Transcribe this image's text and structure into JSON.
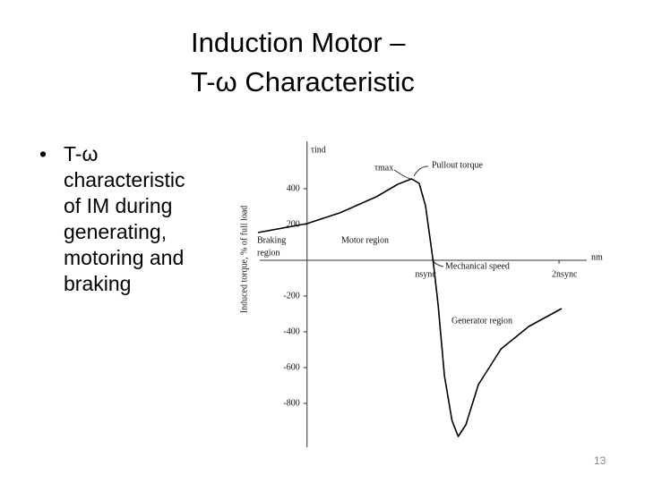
{
  "slide": {
    "title": [
      "Induction Motor –",
      "T-ω Characteristic"
    ],
    "bullet": [
      "T-ω",
      "characteristic",
      "of IM during",
      "generating,",
      "motoring and",
      "braking"
    ],
    "page_number": "13"
  },
  "chart_data": {
    "type": "line",
    "ylabel": "Induced torque, % of full load",
    "y_axis_symbol": "τind",
    "xlabel": "nm",
    "x": [
      -0.39,
      0,
      0.26,
      0.55,
      0.72,
      0.83,
      0.89,
      0.94,
      1.0,
      1.04,
      1.09,
      1.15,
      1.2,
      1.26,
      1.36,
      1.54,
      1.76,
      2.02
    ],
    "values": [
      155,
      205,
      265,
      355,
      425,
      455,
      430,
      305,
      0,
      -245,
      -645,
      -895,
      -985,
      -920,
      -695,
      -495,
      -370,
      -270
    ],
    "color": "#000000",
    "xlim": [
      -0.375,
      2.22
    ],
    "ylim": [
      -1045,
      665
    ],
    "xticks": [
      {
        "value": 1,
        "label": "nsync"
      },
      {
        "value": 2,
        "label": "2nsync"
      }
    ],
    "yticks": [
      -800,
      -600,
      -400,
      -200,
      200,
      400
    ],
    "annotations": [
      "τmax",
      "Pullout torque",
      "Braking",
      "region",
      "Motor region",
      "Mechanical speed",
      "Generator region"
    ]
  }
}
